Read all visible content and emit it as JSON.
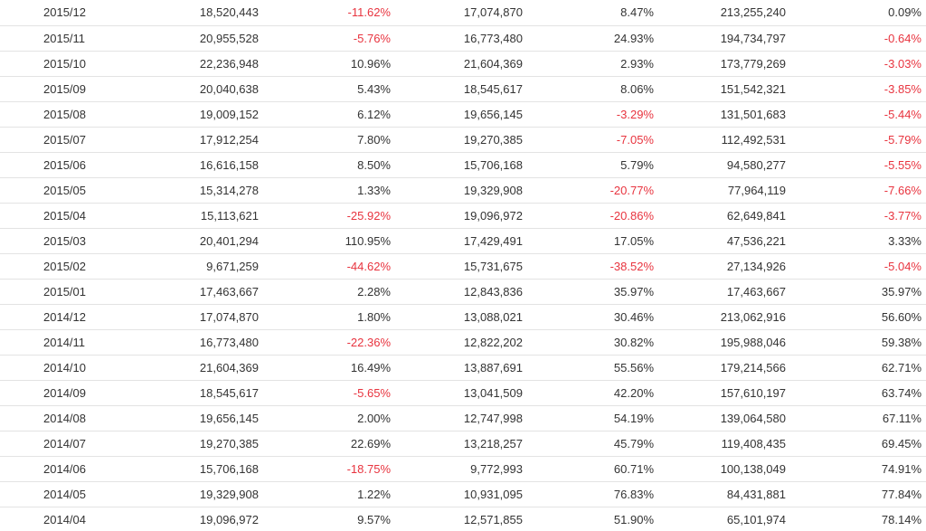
{
  "table": {
    "rows": [
      {
        "month": "2015/12",
        "cells": [
          "18,520,443",
          "-11.62%",
          "17,074,870",
          "8.47%",
          "213,255,240",
          "0.09%"
        ]
      },
      {
        "month": "2015/11",
        "cells": [
          "20,955,528",
          "-5.76%",
          "16,773,480",
          "24.93%",
          "194,734,797",
          "-0.64%"
        ]
      },
      {
        "month": "2015/10",
        "cells": [
          "22,236,948",
          "10.96%",
          "21,604,369",
          "2.93%",
          "173,779,269",
          "-3.03%"
        ]
      },
      {
        "month": "2015/09",
        "cells": [
          "20,040,638",
          "5.43%",
          "18,545,617",
          "8.06%",
          "151,542,321",
          "-3.85%"
        ]
      },
      {
        "month": "2015/08",
        "cells": [
          "19,009,152",
          "6.12%",
          "19,656,145",
          "-3.29%",
          "131,501,683",
          "-5.44%"
        ]
      },
      {
        "month": "2015/07",
        "cells": [
          "17,912,254",
          "7.80%",
          "19,270,385",
          "-7.05%",
          "112,492,531",
          "-5.79%"
        ]
      },
      {
        "month": "2015/06",
        "cells": [
          "16,616,158",
          "8.50%",
          "15,706,168",
          "5.79%",
          "94,580,277",
          "-5.55%"
        ]
      },
      {
        "month": "2015/05",
        "cells": [
          "15,314,278",
          "1.33%",
          "19,329,908",
          "-20.77%",
          "77,964,119",
          "-7.66%"
        ]
      },
      {
        "month": "2015/04",
        "cells": [
          "15,113,621",
          "-25.92%",
          "19,096,972",
          "-20.86%",
          "62,649,841",
          "-3.77%"
        ]
      },
      {
        "month": "2015/03",
        "cells": [
          "20,401,294",
          "110.95%",
          "17,429,491",
          "17.05%",
          "47,536,221",
          "3.33%"
        ]
      },
      {
        "month": "2015/02",
        "cells": [
          "9,671,259",
          "-44.62%",
          "15,731,675",
          "-38.52%",
          "27,134,926",
          "-5.04%"
        ]
      },
      {
        "month": "2015/01",
        "cells": [
          "17,463,667",
          "2.28%",
          "12,843,836",
          "35.97%",
          "17,463,667",
          "35.97%"
        ]
      },
      {
        "month": "2014/12",
        "cells": [
          "17,074,870",
          "1.80%",
          "13,088,021",
          "30.46%",
          "213,062,916",
          "56.60%"
        ]
      },
      {
        "month": "2014/11",
        "cells": [
          "16,773,480",
          "-22.36%",
          "12,822,202",
          "30.82%",
          "195,988,046",
          "59.38%"
        ]
      },
      {
        "month": "2014/10",
        "cells": [
          "21,604,369",
          "16.49%",
          "13,887,691",
          "55.56%",
          "179,214,566",
          "62.71%"
        ]
      },
      {
        "month": "2014/09",
        "cells": [
          "18,545,617",
          "-5.65%",
          "13,041,509",
          "42.20%",
          "157,610,197",
          "63.74%"
        ]
      },
      {
        "month": "2014/08",
        "cells": [
          "19,656,145",
          "2.00%",
          "12,747,998",
          "54.19%",
          "139,064,580",
          "67.11%"
        ]
      },
      {
        "month": "2014/07",
        "cells": [
          "19,270,385",
          "22.69%",
          "13,218,257",
          "45.79%",
          "119,408,435",
          "69.45%"
        ]
      },
      {
        "month": "2014/06",
        "cells": [
          "15,706,168",
          "-18.75%",
          "9,772,993",
          "60.71%",
          "100,138,049",
          "74.91%"
        ]
      },
      {
        "month": "2014/05",
        "cells": [
          "19,329,908",
          "1.22%",
          "10,931,095",
          "76.83%",
          "84,431,881",
          "77.84%"
        ]
      },
      {
        "month": "2014/04",
        "cells": [
          "19,096,972",
          "9.57%",
          "12,571,855",
          "51.90%",
          "65,101,974",
          "78.14%"
        ]
      }
    ]
  },
  "colors": {
    "text": "#333333",
    "negative": "#e8343f",
    "row_divider": "#e3e3e3",
    "background": "#ffffff"
  }
}
